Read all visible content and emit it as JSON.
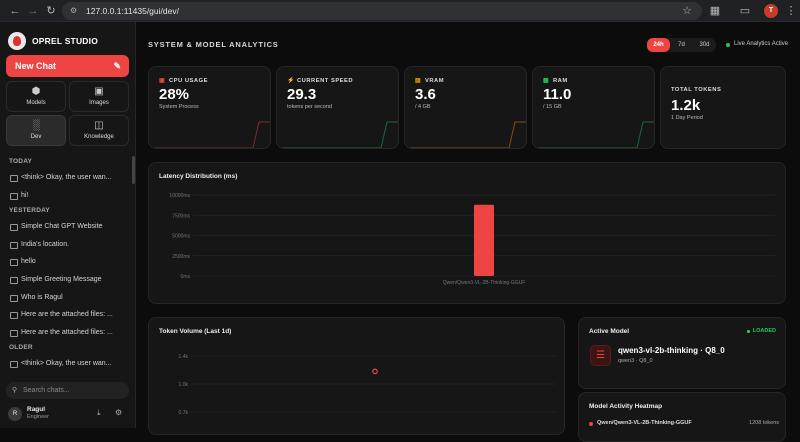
{
  "browser": {
    "url": "127.0.0.1:11435/gui/dev/",
    "profile_initial": "T",
    "icons": [
      "back-icon",
      "forward-icon",
      "reload-icon",
      "star-icon",
      "extensions-icon",
      "cast-icon",
      "profile-icon",
      "menu-icon"
    ]
  },
  "sidebar": {
    "brand": "OPREL STUDIO",
    "new_chat": "New Chat",
    "nav": [
      {
        "label": "Models",
        "icon": "cube-icon"
      },
      {
        "label": "Images",
        "icon": "image-icon"
      },
      {
        "label": "Dev",
        "icon": "bar-chart-icon",
        "active": true
      },
      {
        "label": "Knowledge",
        "icon": "database-icon"
      }
    ],
    "history": [
      {
        "group": "TODAY",
        "items": [
          "<think> Okay, the user wan...",
          "hi!"
        ]
      },
      {
        "group": "YESTERDAY",
        "items": [
          "Simple Chat GPT Website",
          "India's location.",
          "hello",
          "Simple Greeting Message",
          "Who is Ragul",
          "Here are the attached files: ...",
          "Here are the attached files: ..."
        ]
      },
      {
        "group": "OLDER",
        "items": [
          "<think> Okay, the user wan..."
        ]
      }
    ],
    "search_placeholder": "Search chats...",
    "user": {
      "initial": "R",
      "name": "Ragul",
      "role": "Engineer"
    }
  },
  "main": {
    "title": "SYSTEM & MODEL ANALYTICS",
    "ranges": [
      "24h",
      "7d",
      "30d"
    ],
    "active_range": "24h",
    "live": "Live Analytics Active",
    "stats": [
      {
        "label": "CPU USAGE",
        "icon": "cpu-icon",
        "value": "28%",
        "sub": "System Process",
        "color": "#ef4444"
      },
      {
        "label": "CURRENT SPEED",
        "icon": "bolt-icon",
        "value": "29.3",
        "sub": "tokens per second",
        "color": "#22c55e"
      },
      {
        "label": "VRAM",
        "icon": "chip-icon",
        "value": "3.6",
        "sub": "/ 4 GB",
        "color": "#f59e0b"
      },
      {
        "label": "RAM",
        "icon": "memory-icon",
        "value": "11.0",
        "sub": "/ 15 GB",
        "color": "#22c55e"
      },
      {
        "label": "TOTAL TOKENS",
        "icon": "",
        "value": "1.2k",
        "sub": "1 Day Period",
        "color": ""
      }
    ],
    "latency": {
      "title": "Latency Distribution (ms)"
    },
    "token_volume": {
      "title": "Token Volume (Last 1d)"
    },
    "active_model": {
      "title": "Active Model",
      "status": "LOADED",
      "name": "qwen3-vl-2b-thinking · Q8_0",
      "sub": "qwen3 · Q8_0"
    },
    "heatmap": {
      "title": "Model Activity Heatmap",
      "rows": [
        {
          "name": "Qwen/Qwen3-VL-2B-Thinking-GGUF",
          "tokens": "1208 tokens"
        }
      ]
    }
  },
  "chart_data": [
    {
      "type": "bar",
      "title": "Latency Distribution (ms)",
      "categories": [
        "Qwen/Qwen3-VL-2B-Thinking-GGUF"
      ],
      "values": [
        8800
      ],
      "yticks": [
        "10000ms",
        "7500ms",
        "5000ms",
        "2500ms",
        "0ms"
      ],
      "ylim": [
        0,
        10000
      ],
      "color": "#ef4444",
      "grid": true
    },
    {
      "type": "scatter",
      "title": "Token Volume (Last 1d)",
      "yticks": [
        "1.4k",
        "1.0k",
        "0.7k"
      ],
      "ylim": [
        0,
        1400
      ],
      "points": [
        {
          "y": 1208
        }
      ],
      "color": "#ef4444",
      "grid": true
    }
  ]
}
